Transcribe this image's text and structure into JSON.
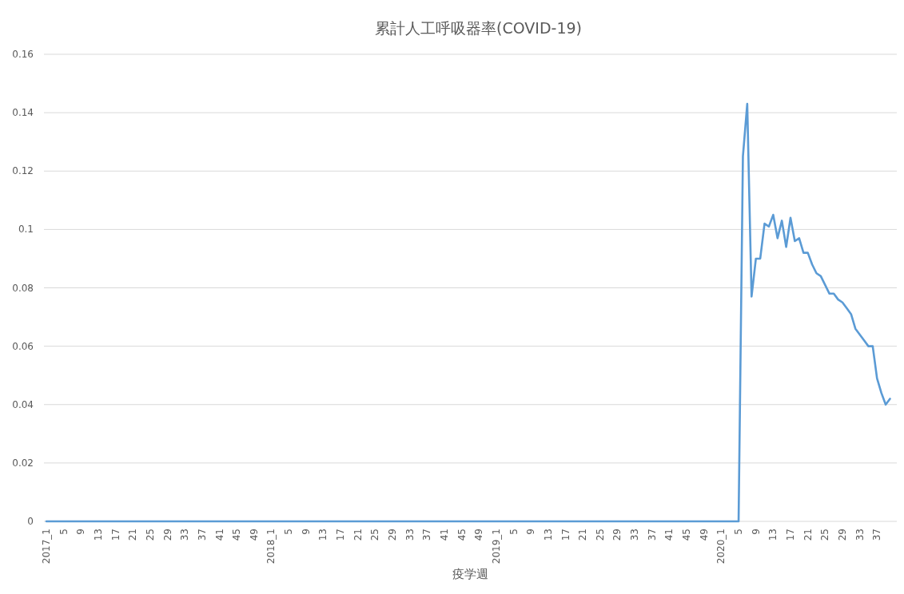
{
  "chart_data": {
    "type": "line",
    "title": "累計人工呼吸器率(COVID-19)",
    "xlabel": "疫学週",
    "categories": [
      "2017_1",
      null,
      null,
      null,
      "5",
      null,
      null,
      null,
      "9",
      null,
      null,
      null,
      "13",
      null,
      null,
      null,
      "17",
      null,
      null,
      null,
      "21",
      null,
      null,
      null,
      "25",
      null,
      null,
      null,
      "29",
      null,
      null,
      null,
      "33",
      null,
      null,
      null,
      "37",
      null,
      null,
      null,
      "41",
      null,
      null,
      null,
      "45",
      null,
      null,
      null,
      "49",
      null,
      null,
      null,
      "2018_1",
      null,
      null,
      null,
      "5",
      null,
      null,
      null,
      "9",
      null,
      null,
      null,
      "13",
      null,
      null,
      null,
      "17",
      null,
      null,
      null,
      "21",
      null,
      null,
      null,
      "25",
      null,
      null,
      null,
      "29",
      null,
      null,
      null,
      "33",
      null,
      null,
      null,
      "37",
      null,
      null,
      null,
      "41",
      null,
      null,
      null,
      "45",
      null,
      null,
      null,
      "49",
      null,
      null,
      null,
      "2019_1",
      null,
      null,
      null,
      "5",
      null,
      null,
      null,
      "9",
      null,
      null,
      null,
      "13",
      null,
      null,
      null,
      "17",
      null,
      null,
      null,
      "21",
      null,
      null,
      null,
      "25",
      null,
      null,
      null,
      "29",
      null,
      null,
      null,
      "33",
      null,
      null,
      null,
      "37",
      null,
      null,
      null,
      "41",
      null,
      null,
      null,
      "45",
      null,
      null,
      null,
      "49",
      null,
      null,
      null,
      "2020_1",
      null,
      null,
      null,
      "5",
      null,
      null,
      null,
      "9",
      null,
      null,
      null,
      "13",
      null,
      null,
      null,
      "17",
      null,
      null,
      null,
      "21",
      null,
      null,
      null,
      "25",
      null,
      null,
      null,
      "29",
      null,
      null,
      null,
      "33",
      null,
      null,
      null,
      "37",
      null,
      null,
      null
    ],
    "series": [
      {
        "color": "#5b9bd5",
        "values": [
          0,
          0,
          0,
          0,
          0,
          0,
          0,
          0,
          0,
          0,
          0,
          0,
          0,
          0,
          0,
          0,
          0,
          0,
          0,
          0,
          0,
          0,
          0,
          0,
          0,
          0,
          0,
          0,
          0,
          0,
          0,
          0,
          0,
          0,
          0,
          0,
          0,
          0,
          0,
          0,
          0,
          0,
          0,
          0,
          0,
          0,
          0,
          0,
          0,
          0,
          0,
          0,
          0,
          0,
          0,
          0,
          0,
          0,
          0,
          0,
          0,
          0,
          0,
          0,
          0,
          0,
          0,
          0,
          0,
          0,
          0,
          0,
          0,
          0,
          0,
          0,
          0,
          0,
          0,
          0,
          0,
          0,
          0,
          0,
          0,
          0,
          0,
          0,
          0,
          0,
          0,
          0,
          0,
          0,
          0,
          0,
          0,
          0,
          0,
          0,
          0,
          0,
          0,
          0,
          0,
          0,
          0,
          0,
          0,
          0,
          0,
          0,
          0,
          0,
          0,
          0,
          0,
          0,
          0,
          0,
          0,
          0,
          0,
          0,
          0,
          0,
          0,
          0,
          0,
          0,
          0,
          0,
          0,
          0,
          0,
          0,
          0,
          0,
          0,
          0,
          0,
          0,
          0,
          0,
          0,
          0,
          0,
          0,
          0,
          0,
          0,
          0,
          0,
          0,
          0,
          0,
          0,
          0,
          0,
          0,
          0,
          0.125,
          0.143,
          0.077,
          0.09,
          0.09,
          0.102,
          0.101,
          0.105,
          0.097,
          0.103,
          0.094,
          0.104,
          0.096,
          0.097,
          0.092,
          0.092,
          0.088,
          0.085,
          0.084,
          0.081,
          0.078,
          0.078,
          0.076,
          0.075,
          0.073,
          0.071,
          0.066,
          0.064,
          0.062,
          0.06,
          0.06,
          0.049,
          0.044,
          0.04,
          0.042
        ]
      }
    ],
    "ylim": [
      0,
      0.16
    ],
    "yticks": [
      0,
      0.02,
      0.04,
      0.06,
      0.08,
      0.1,
      0.12,
      0.14,
      0.16
    ],
    "grid": "y"
  }
}
